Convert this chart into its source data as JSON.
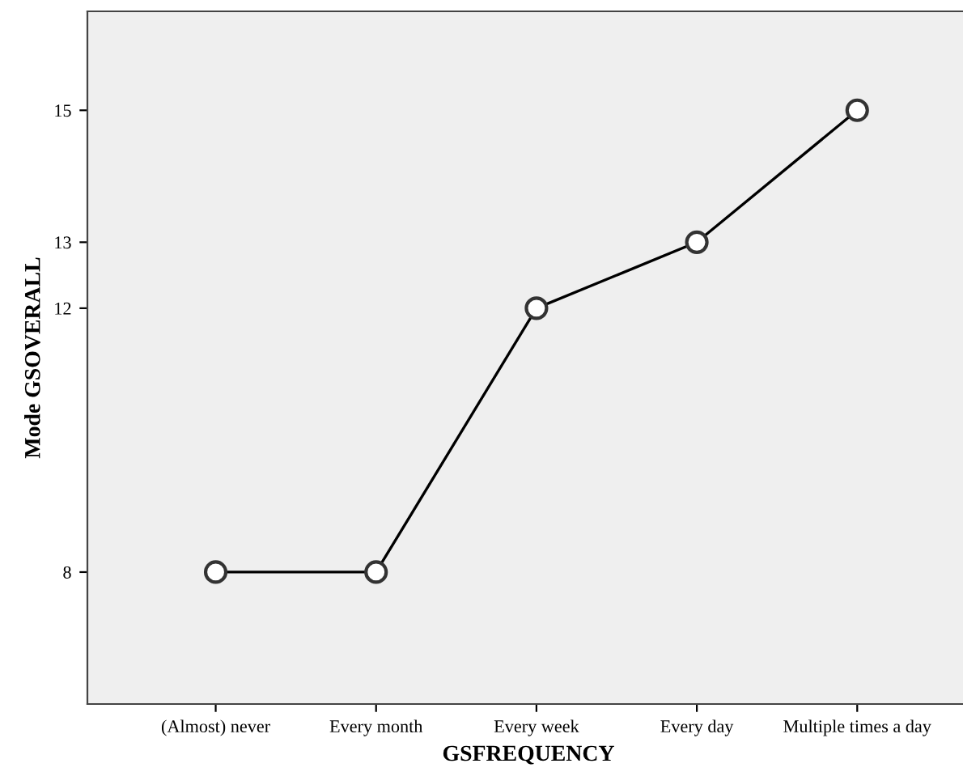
{
  "chart_data": {
    "type": "line",
    "xlabel": "GSFREQUENCY",
    "ylabel": "Mode GSOVERALL",
    "categories": [
      "(Almost) never",
      "Every month",
      "Every week",
      "Every day",
      "Multiple times a day"
    ],
    "series": [
      {
        "color": "#000000",
        "values": [
          8,
          8,
          12,
          13,
          15
        ]
      }
    ],
    "ylim": [
      6,
      16.5
    ],
    "yticks": [
      8,
      12,
      13,
      15
    ],
    "marker": "circle",
    "line_style": "solid",
    "grid": false,
    "legend": false
  }
}
